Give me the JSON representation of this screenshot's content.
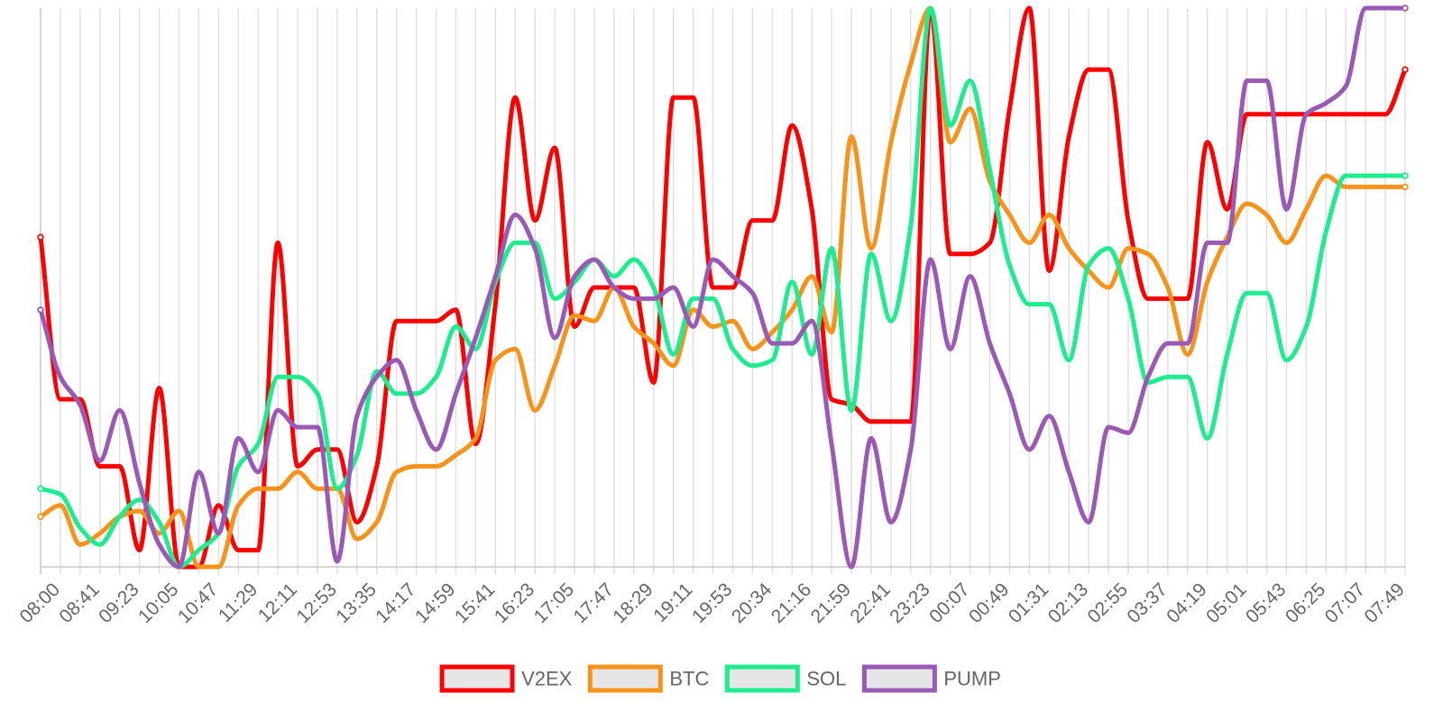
{
  "chart_data": {
    "type": "line",
    "title": "",
    "xlabel": "",
    "ylabel": "",
    "ylim": [
      0,
      100
    ],
    "grid": true,
    "legend_position": "bottom-center",
    "curve": "smooth",
    "x": [
      "08:00",
      "08:20",
      "08:41",
      "09:02",
      "09:23",
      "09:44",
      "10:05",
      "10:26",
      "10:47",
      "11:08",
      "11:29",
      "11:50",
      "12:11",
      "12:32",
      "12:53",
      "13:14",
      "13:35",
      "13:56",
      "14:17",
      "14:38",
      "14:59",
      "15:20",
      "15:41",
      "16:02",
      "16:23",
      "16:44",
      "17:05",
      "17:26",
      "17:47",
      "18:08",
      "18:29",
      "18:50",
      "19:11",
      "19:32",
      "19:53",
      "20:14",
      "20:34",
      "20:55",
      "21:16",
      "21:37",
      "21:59",
      "22:20",
      "22:41",
      "23:02",
      "23:23",
      "23:44",
      "00:07",
      "00:28",
      "00:49",
      "01:10",
      "01:31",
      "01:52",
      "02:13",
      "02:34",
      "02:55",
      "03:16",
      "03:37",
      "03:58",
      "04:19",
      "04:40",
      "05:01",
      "05:22",
      "05:43",
      "06:04",
      "06:25",
      "06:46",
      "07:07",
      "07:28",
      "07:49",
      "08:10"
    ],
    "x_tick_labels": [
      "08:00",
      "08:41",
      "09:23",
      "10:05",
      "10:47",
      "11:29",
      "12:11",
      "12:53",
      "13:35",
      "14:17",
      "14:59",
      "15:41",
      "16:23",
      "17:05",
      "17:47",
      "18:29",
      "19:11",
      "19:53",
      "20:34",
      "21:16",
      "21:59",
      "22:41",
      "23:23",
      "00:07",
      "00:49",
      "01:31",
      "02:13",
      "02:55",
      "03:37",
      "04:19",
      "05:01",
      "05:43",
      "06:25",
      "07:07",
      "07:49"
    ],
    "series": [
      {
        "name": "V2EX",
        "color": "#ff0000",
        "values": [
          59,
          30,
          30,
          18,
          18,
          3,
          32,
          0,
          0,
          11,
          3,
          3,
          58,
          18,
          21,
          21,
          8,
          18,
          44,
          44,
          44,
          46,
          22,
          47,
          84,
          62,
          75,
          43,
          50,
          50,
          50,
          33,
          84,
          84,
          50,
          50,
          62,
          62,
          79,
          64,
          30,
          29,
          26,
          26,
          26,
          100,
          56,
          56,
          58,
          82,
          100,
          53,
          77,
          89,
          89,
          62,
          48,
          48,
          48,
          76,
          64,
          81,
          81,
          81,
          81,
          81,
          81,
          81,
          81,
          89
        ]
      },
      {
        "name": "BTC",
        "color": "#f7931a",
        "values": [
          9,
          11,
          4,
          6,
          9,
          10,
          6,
          10,
          0,
          0,
          11,
          14,
          14,
          17,
          14,
          14,
          5,
          8,
          17,
          18,
          18,
          20,
          23,
          37,
          39,
          28,
          36,
          45,
          44,
          50,
          43,
          40,
          36,
          46,
          43,
          44,
          39,
          42,
          46,
          52,
          42,
          77,
          57,
          76,
          90,
          100,
          76,
          82,
          69,
          63,
          58,
          63,
          57,
          53,
          50,
          57,
          56,
          50,
          38,
          51,
          59,
          65,
          63,
          58,
          64,
          70,
          68,
          68,
          68,
          68
        ]
      },
      {
        "name": "SOL",
        "color": "#1ded8f",
        "values": [
          14,
          13,
          7,
          4,
          9,
          12,
          8,
          0,
          3,
          6,
          18,
          22,
          34,
          34,
          31,
          14,
          20,
          35,
          31,
          31,
          34,
          43,
          39,
          51,
          58,
          58,
          48,
          51,
          55,
          52,
          55,
          50,
          38,
          48,
          48,
          39,
          36,
          37,
          51,
          38,
          57,
          28,
          56,
          44,
          61,
          100,
          79,
          87,
          71,
          54,
          47,
          47,
          37,
          54,
          57,
          48,
          33,
          34,
          34,
          23,
          38,
          49,
          49,
          37,
          43,
          60,
          70,
          70,
          70,
          70
        ]
      },
      {
        "name": "PUMP",
        "color": "#9b59b6",
        "values": [
          46,
          34,
          29,
          19,
          28,
          15,
          4,
          0,
          17,
          6,
          23,
          17,
          28,
          25,
          25,
          1,
          27,
          34,
          37,
          28,
          21,
          31,
          41,
          52,
          63,
          57,
          41,
          52,
          55,
          50,
          48,
          48,
          50,
          43,
          55,
          52,
          49,
          40,
          40,
          44,
          22,
          0,
          23,
          8,
          21,
          55,
          39,
          52,
          40,
          31,
          21,
          27,
          17,
          8,
          25,
          24,
          34,
          40,
          40,
          58,
          58,
          87,
          87,
          64,
          81,
          83,
          86,
          100,
          100,
          100
        ]
      }
    ]
  }
}
